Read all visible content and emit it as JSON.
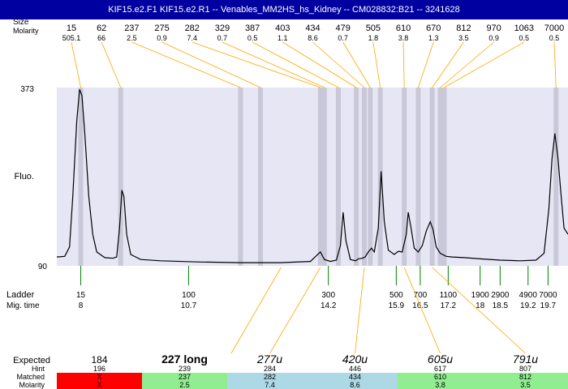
{
  "title": "KIF15.e2.F1  KIF15.e2.R1 -- Venables_MM2HS_hs_Kidney -- CM028832:B21 -- 3241628",
  "header_labels": {
    "size": "Size",
    "molarity": "Molarity"
  },
  "fluo_axis": {
    "label": "Fluo.",
    "top": "373",
    "bottom": "90"
  },
  "ladder": {
    "ladder_label": "Ladder",
    "mig_label": "Mig. time"
  },
  "chart_data": {
    "type": "line",
    "x_range": [
      7.4,
      20.2
    ],
    "y_range": [
      90,
      373
    ],
    "peaks": [
      {
        "size": "15",
        "molarity": "505.1",
        "time": 8.0
      },
      {
        "size": "62",
        "molarity": "66",
        "time": 9.0
      },
      {
        "size": "237",
        "molarity": "2.5",
        "time": 12.0
      },
      {
        "size": "275",
        "molarity": "0.9",
        "time": 12.5
      },
      {
        "size": "282",
        "molarity": "7.4",
        "time": 14.0
      },
      {
        "size": "329",
        "molarity": "0.7",
        "time": 14.1
      },
      {
        "size": "387",
        "molarity": "0.5",
        "time": 14.45
      },
      {
        "size": "403",
        "molarity": "1.1",
        "time": 14.9
      },
      {
        "size": "434",
        "molarity": "8.6",
        "time": 15.1
      },
      {
        "size": "479",
        "molarity": "0.7",
        "time": 15.25
      },
      {
        "size": "505",
        "molarity": "1.8",
        "time": 15.5
      },
      {
        "size": "610",
        "molarity": "3.8",
        "time": 16.1
      },
      {
        "size": "670",
        "molarity": "1.3",
        "time": 16.45
      },
      {
        "size": "812",
        "molarity": "3.5",
        "time": 16.8
      },
      {
        "size": "970",
        "molarity": "0.9",
        "time": 17.0
      },
      {
        "size": "1063",
        "molarity": "0.5",
        "time": 17.1
      },
      {
        "size": "7000",
        "molarity": "0.5",
        "time": 19.9
      }
    ],
    "ladder": [
      {
        "size": "15",
        "time": "8",
        "t": 8.0
      },
      {
        "size": "100",
        "time": "10.7",
        "t": 10.7
      },
      {
        "size": "300",
        "time": "14.2",
        "t": 14.2
      },
      {
        "size": "500",
        "time": "15.9",
        "t": 15.9
      },
      {
        "size": "700",
        "time": "16.5",
        "t": 16.5
      },
      {
        "size": "1100",
        "time": "17.2",
        "t": 17.2
      },
      {
        "size": "1900",
        "time": "18",
        "t": 18.0
      },
      {
        "size": "2900",
        "time": "18.5",
        "t": 18.5
      },
      {
        "size": "4900",
        "time": "19.2",
        "t": 19.2
      },
      {
        "size": "7000",
        "time": "19.7",
        "t": 19.7
      }
    ],
    "trace": [
      [
        7.4,
        104
      ],
      [
        7.6,
        105
      ],
      [
        7.72,
        120
      ],
      [
        7.8,
        200
      ],
      [
        7.9,
        320
      ],
      [
        7.97,
        370
      ],
      [
        8.03,
        360
      ],
      [
        8.1,
        300
      ],
      [
        8.2,
        200
      ],
      [
        8.3,
        140
      ],
      [
        8.4,
        112
      ],
      [
        8.6,
        103
      ],
      [
        8.8,
        102
      ],
      [
        8.9,
        104
      ],
      [
        8.97,
        150
      ],
      [
        9.03,
        210
      ],
      [
        9.08,
        200
      ],
      [
        9.15,
        140
      ],
      [
        9.25,
        108
      ],
      [
        9.5,
        100
      ],
      [
        10,
        98
      ],
      [
        11,
        96
      ],
      [
        12,
        95
      ],
      [
        13,
        95
      ],
      [
        13.75,
        97
      ],
      [
        13.9,
        106
      ],
      [
        14.0,
        112
      ],
      [
        14.1,
        100
      ],
      [
        14.25,
        97
      ],
      [
        14.4,
        99
      ],
      [
        14.5,
        122
      ],
      [
        14.57,
        175
      ],
      [
        14.64,
        130
      ],
      [
        14.75,
        100
      ],
      [
        14.88,
        98
      ],
      [
        14.95,
        101
      ],
      [
        15.05,
        102
      ],
      [
        15.12,
        104
      ],
      [
        15.2,
        112
      ],
      [
        15.28,
        118
      ],
      [
        15.35,
        112
      ],
      [
        15.45,
        150
      ],
      [
        15.52,
        240
      ],
      [
        15.6,
        160
      ],
      [
        15.7,
        115
      ],
      [
        15.85,
        108
      ],
      [
        15.95,
        113
      ],
      [
        16.05,
        112
      ],
      [
        16.15,
        140
      ],
      [
        16.2,
        175
      ],
      [
        16.27,
        150
      ],
      [
        16.35,
        118
      ],
      [
        16.45,
        112
      ],
      [
        16.55,
        122
      ],
      [
        16.65,
        145
      ],
      [
        16.75,
        160
      ],
      [
        16.82,
        148
      ],
      [
        16.9,
        120
      ],
      [
        17.0,
        110
      ],
      [
        17.15,
        105
      ],
      [
        17.3,
        104
      ],
      [
        17.6,
        103
      ],
      [
        18,
        101
      ],
      [
        18.5,
        99
      ],
      [
        19,
        98
      ],
      [
        19.4,
        99
      ],
      [
        19.6,
        110
      ],
      [
        19.72,
        180
      ],
      [
        19.8,
        260
      ],
      [
        19.87,
        300
      ],
      [
        19.95,
        260
      ],
      [
        20.03,
        200
      ],
      [
        20.1,
        150
      ],
      [
        20.2,
        140
      ]
    ]
  },
  "expected": {
    "label": "Expected",
    "hint_label": "Hint",
    "matched_label": "Matched",
    "molarity_label": "Molarity",
    "items": [
      {
        "expected": "184",
        "hint": "196",
        "matched": "X",
        "molarity": "X",
        "color": "#ff0000",
        "time": 12.0,
        "style": "normal"
      },
      {
        "expected": "227 long",
        "hint": "239",
        "matched": "237",
        "molarity": "2.5",
        "color": "#90ee90",
        "time": 12.0,
        "style": "bold"
      },
      {
        "expected": "277u",
        "hint": "284",
        "matched": "282",
        "molarity": "7.4",
        "color": "#add8e6",
        "time": 14.0,
        "style": "italic"
      },
      {
        "expected": "420u",
        "hint": "446",
        "matched": "434",
        "molarity": "8.6",
        "color": "#add8e6",
        "time": 15.1,
        "style": "italic"
      },
      {
        "expected": "605u",
        "hint": "617",
        "matched": "610",
        "molarity": "3.8",
        "color": "#90ee90",
        "time": 16.1,
        "style": "italic"
      },
      {
        "expected": "791u",
        "hint": "807",
        "matched": "812",
        "molarity": "3.5",
        "color": "#90ee90",
        "time": 16.8,
        "style": "italic"
      }
    ]
  },
  "colors": {
    "title_bg": "#0000a0",
    "plot_bg": "#e6e6f5",
    "peak_band": "#c8c8d8",
    "leader": "#ffa500",
    "ladder_tick": "#008000",
    "trace": "#000000"
  }
}
